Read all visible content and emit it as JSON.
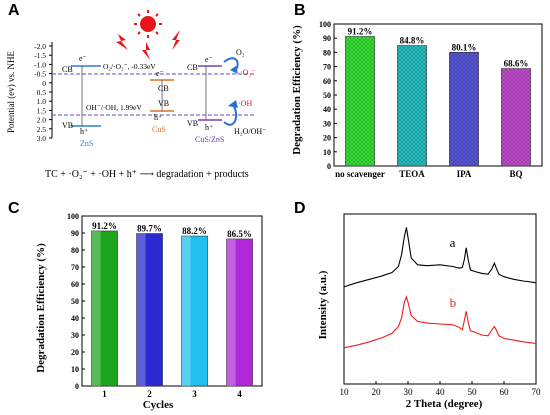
{
  "panels": {
    "a": "A",
    "b": "B",
    "c": "C",
    "d": "D"
  },
  "colors": {
    "zns": "#2a7fd0",
    "cus": "#e07020",
    "cuszns": "#7a3fb0",
    "o2_arrow": "#2a6fd6",
    "oh_arrow": "#2a6fd6",
    "sun": "#e8151a",
    "dashed": "#5b4fc4",
    "line_a": "#000000",
    "line_b": "#ee1c1c"
  },
  "diagram_a": {
    "y_axis_label": "Potential (ev) vs. NHE",
    "ticks": [
      "-2.0",
      "-1.5",
      "-1.0",
      "-0.5",
      "0",
      "0.5",
      "1.0",
      "1.5",
      "2.0",
      "2.5",
      "3.0"
    ],
    "cb": "CB",
    "vb": "VB",
    "e_minus": "e⁻",
    "h_plus": "h⁺",
    "o2_couple": "O₂/·O₂⁻, -0.33eV",
    "oh_couple": "OH⁻/·OH, 1.99eV",
    "zns": "ZnS",
    "cus": "CuS",
    "cuszns": "CuS/ZnS",
    "o2": "O₂",
    "o2_radical": "·O₂⁻",
    "oh_radical": "·OH",
    "h2o": "H₂O/OH⁻",
    "equation": "TC + ·O₂⁻ + ·OH + h⁺ ⟶ degradation + products"
  },
  "chart_data": [
    {
      "id": "B",
      "type": "bar",
      "ylabel": "Degradation Efficiency (%)",
      "ylim": [
        0,
        100
      ],
      "yticks": [
        0,
        10,
        20,
        30,
        40,
        50,
        60,
        70,
        80,
        90,
        100
      ],
      "categories": [
        "no scavenger",
        "TEOA",
        "IPA",
        "BQ"
      ],
      "values": [
        91.2,
        84.8,
        80.1,
        68.6
      ],
      "data_labels": [
        "91.2%",
        "84.8%",
        "80.1%",
        "68.6%"
      ],
      "colors": [
        "#38e838",
        "#28c4c8",
        "#5a5ae0",
        "#c84ed6"
      ],
      "pattern": "crosshatch"
    },
    {
      "id": "C",
      "type": "bar",
      "xlabel": "Cycles",
      "ylabel": "Degradation Efficiency (%)",
      "ylim": [
        0,
        100
      ],
      "yticks": [
        0,
        10,
        20,
        30,
        40,
        50,
        60,
        70,
        80,
        90,
        100
      ],
      "categories": [
        "1",
        "2",
        "3",
        "4"
      ],
      "values": [
        91.2,
        89.7,
        88.2,
        86.5
      ],
      "data_labels": [
        "91.2%",
        "89.7%",
        "88.2%",
        "86.5%"
      ],
      "colors": [
        "#1ea51e",
        "#2a2ad0",
        "#22c0ec",
        "#b028d8"
      ]
    },
    {
      "id": "D",
      "type": "line",
      "xlabel": "2 Theta (degree)",
      "ylabel": "Intensity (a.u.)",
      "xlim": [
        10,
        70
      ],
      "xticks": [
        10,
        20,
        30,
        40,
        50,
        60,
        70
      ],
      "y_ticks_shown": false,
      "series": [
        {
          "name": "a",
          "color": "#000000",
          "x": [
            10,
            14,
            18,
            22,
            25,
            27,
            28,
            28.8,
            29.5,
            30.2,
            31,
            33,
            36,
            40,
            44,
            46,
            47,
            47.6,
            48.2,
            48.8,
            49.5,
            51,
            53,
            55,
            56.2,
            57,
            57.6,
            58.4,
            60,
            63,
            66,
            70
          ],
          "y": [
            0.6,
            1.1,
            1.5,
            1.9,
            2.3,
            3.0,
            4.4,
            6.4,
            7.6,
            6.0,
            4.0,
            3.2,
            3.1,
            3.2,
            3.0,
            2.8,
            2.9,
            3.8,
            5.2,
            3.8,
            2.6,
            2.4,
            2.2,
            2.1,
            2.7,
            3.4,
            2.8,
            2.1,
            1.8,
            1.5,
            1.3,
            1.1
          ]
        },
        {
          "name": "b",
          "color": "#ee1c1c",
          "x": [
            10,
            14,
            18,
            22,
            25,
            27,
            28,
            28.8,
            29.5,
            30.2,
            31,
            33,
            36,
            40,
            44,
            46,
            47,
            47.6,
            48.2,
            48.8,
            49.5,
            51,
            53,
            55,
            56.2,
            57,
            57.6,
            58.4,
            60,
            63,
            66,
            70
          ],
          "y": [
            0.5,
            0.8,
            1.2,
            1.7,
            2.2,
            3.0,
            4.0,
            5.8,
            6.5,
            5.6,
            4.3,
            3.6,
            3.4,
            3.3,
            3.2,
            2.9,
            2.6,
            3.7,
            4.8,
            3.5,
            2.5,
            2.3,
            2.0,
            1.9,
            2.6,
            3.0,
            2.6,
            1.9,
            1.6,
            1.4,
            1.2,
            1.0
          ]
        }
      ]
    }
  ]
}
